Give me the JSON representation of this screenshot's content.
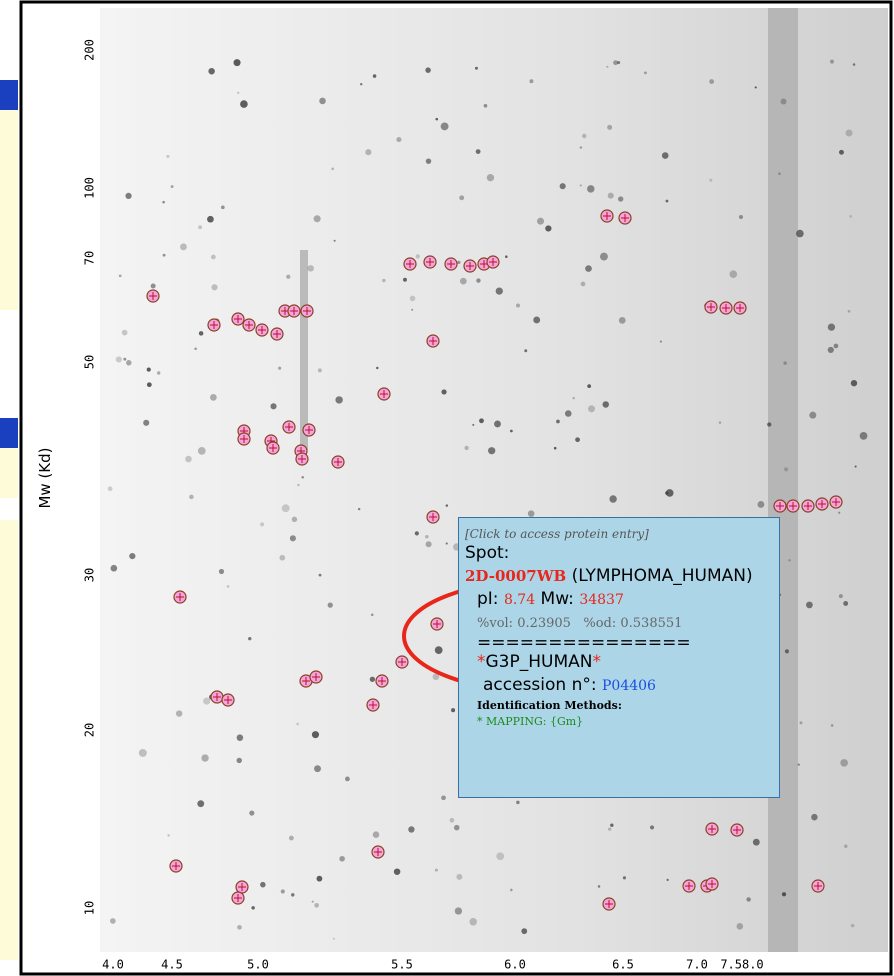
{
  "axis": {
    "y_label": "Mw (Kd)",
    "y_ticks": [
      "200",
      "100",
      "70",
      "50",
      "30",
      "20",
      "10"
    ],
    "x_ticks": [
      "4.0",
      "4.5",
      "5.0",
      "5.5",
      "6.0",
      "6.5",
      "7.0",
      "7.58.0"
    ]
  },
  "tooltip": {
    "hint": "[Click to access protein entry]",
    "spot_label": "Spot:",
    "spot_id": "2D-0007WB",
    "spot_set": "(LYMPHOMA_HUMAN)",
    "pi_label": "pI:",
    "pi": "8.74",
    "mw_label": "Mw:",
    "mw": "34837",
    "vol": "%vol: 0.23905",
    "od": "%od: 0.538551",
    "separator": "===============",
    "star": "*",
    "protein": "G3P_HUMAN",
    "accession_label": "accession n°:",
    "accession": "P04406",
    "methods_label": "Identification Methods:",
    "methods": "* MAPPING: {Gm}"
  }
}
